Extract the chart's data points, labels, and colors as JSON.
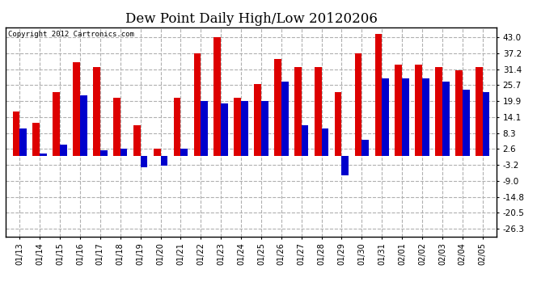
{
  "title": "Dew Point Daily High/Low 20120206",
  "copyright": "Copyright 2012 Cartronics.com",
  "dates": [
    "01/13",
    "01/14",
    "01/15",
    "01/16",
    "01/17",
    "01/18",
    "01/19",
    "01/20",
    "01/21",
    "01/22",
    "01/23",
    "01/24",
    "01/25",
    "01/26",
    "01/27",
    "01/28",
    "01/29",
    "01/30",
    "01/31",
    "02/01",
    "02/02",
    "02/03",
    "02/04",
    "02/05"
  ],
  "high_values": [
    16.0,
    12.0,
    23.0,
    34.0,
    32.0,
    21.0,
    11.0,
    2.6,
    21.0,
    37.0,
    43.0,
    21.0,
    26.0,
    35.0,
    32.0,
    32.0,
    23.0,
    37.0,
    44.0,
    33.0,
    33.0,
    32.0,
    31.0,
    32.0
  ],
  "low_values": [
    10.0,
    1.0,
    4.0,
    22.0,
    2.0,
    2.6,
    -4.0,
    -3.5,
    2.6,
    20.0,
    19.0,
    20.0,
    20.0,
    27.0,
    11.0,
    10.0,
    -7.0,
    6.0,
    28.0,
    28.0,
    28.0,
    27.0,
    24.0,
    23.0
  ],
  "high_color": "#dd0000",
  "low_color": "#0000cc",
  "bg_color": "#ffffff",
  "plot_bg_color": "#ffffff",
  "grid_color": "#b0b0b0",
  "yticks": [
    43.0,
    37.2,
    31.4,
    25.7,
    19.9,
    14.1,
    8.3,
    2.6,
    -3.2,
    -9.0,
    -14.8,
    -20.5,
    -26.3
  ],
  "ylim": [
    -29.0,
    46.5
  ],
  "bar_width": 0.35,
  "title_fontsize": 12,
  "figwidth": 6.9,
  "figheight": 3.75,
  "dpi": 100
}
